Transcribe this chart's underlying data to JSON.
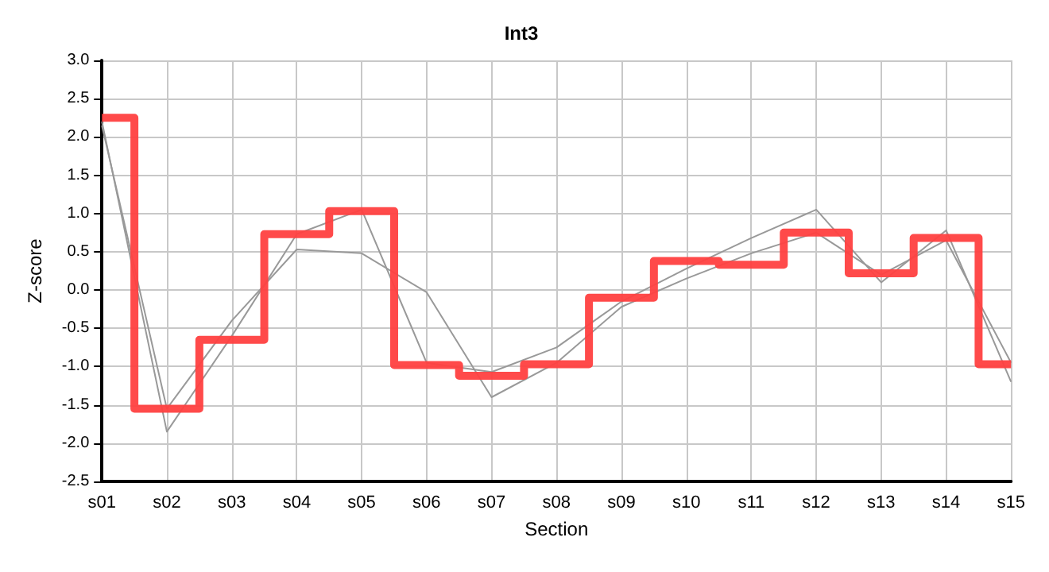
{
  "chart_data": {
    "type": "line",
    "title": "Int3",
    "xlabel": "Section",
    "ylabel": "Z-score",
    "categories": [
      "s01",
      "s02",
      "s03",
      "s04",
      "s05",
      "s06",
      "s07",
      "s08",
      "s09",
      "s10",
      "s11",
      "s12",
      "s13",
      "s14",
      "s15"
    ],
    "series": [
      {
        "color": "#999999",
        "values": [
          2.2,
          -1.85,
          -0.6,
          0.73,
          1.05,
          -0.95,
          -1.07,
          -0.75,
          -0.15,
          0.28,
          0.68,
          1.05,
          0.1,
          0.78,
          -1.2
        ]
      },
      {
        "color": "#999999",
        "values": [
          2.15,
          -1.55,
          -0.4,
          0.53,
          0.48,
          -0.03,
          -1.4,
          -0.95,
          -0.22,
          0.15,
          0.48,
          0.75,
          0.2,
          0.65,
          -0.95
        ]
      },
      {
        "type": "step",
        "color": "#ff4040",
        "values": [
          2.25,
          -1.55,
          -0.65,
          0.73,
          1.03,
          -0.98,
          -1.12,
          -0.97,
          -0.1,
          0.38,
          0.33,
          0.75,
          0.22,
          0.68,
          -0.97
        ]
      }
    ],
    "ylim": [
      -2.5,
      3.0
    ],
    "yticks": [
      -2.5,
      {
        "value": -2,
        "label": "-2.0"
      },
      -1.5,
      {
        "value": -1,
        "label": "-1.0"
      },
      -0.5,
      {
        "value": 0,
        "label": "0.0"
      },
      0.5,
      {
        "value": 1,
        "label": "1.0"
      },
      1.5,
      {
        "value": 2,
        "label": "2.0"
      },
      2.5,
      {
        "value": 3,
        "label": "3.0"
      }
    ],
    "grid": true,
    "marker": "none",
    "line_style": "solid"
  }
}
